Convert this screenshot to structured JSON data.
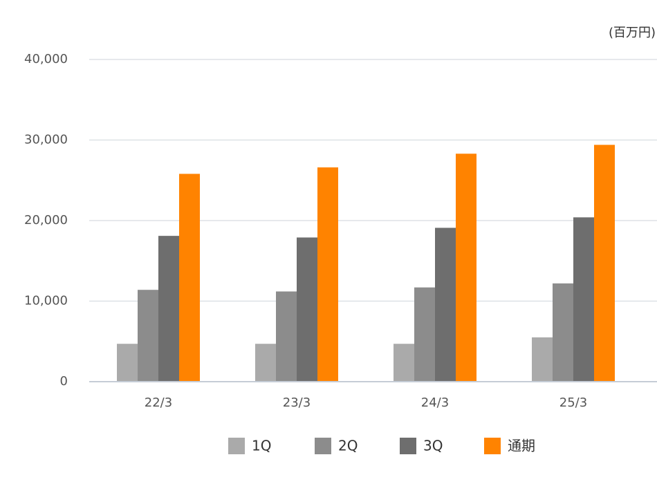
{
  "chart_data": {
    "type": "bar",
    "unit_label": "(百万円)",
    "categories": [
      "22/3",
      "23/3",
      "24/3",
      "25/3"
    ],
    "series": [
      {
        "name": "1Q",
        "color": "#aaaaaa",
        "values": [
          4700,
          4700,
          4700,
          5500
        ]
      },
      {
        "name": "2Q",
        "color": "#8c8c8c",
        "values": [
          11400,
          11200,
          11700,
          12200
        ]
      },
      {
        "name": "3Q",
        "color": "#6e6e6e",
        "values": [
          18100,
          17900,
          19100,
          20400
        ]
      },
      {
        "name": "通期",
        "color": "#ff8300",
        "values": [
          25800,
          26600,
          28300,
          29400
        ]
      }
    ],
    "ylim": [
      0,
      40000
    ],
    "yticks": [
      0,
      {
        "value": 10000,
        "label": "10,000"
      },
      {
        "value": 20000,
        "label": "20,000"
      },
      {
        "value": 30000,
        "label": "30,000"
      },
      {
        "value": 40000,
        "label": "40,000"
      }
    ],
    "grid": true,
    "legend": "bottom"
  }
}
